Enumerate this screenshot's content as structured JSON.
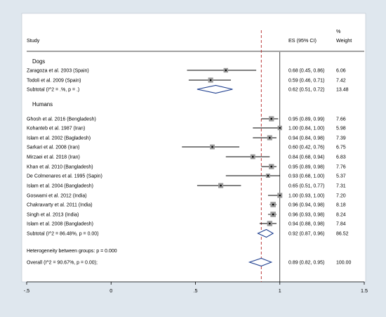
{
  "chart_data": {
    "type": "forest",
    "headers": {
      "study": "Study",
      "es": "ES (95% CI)",
      "weight_pct": "%",
      "weight": "Weight"
    },
    "x_ticks": [
      "-.5",
      "0",
      ".5",
      "1",
      "1.5"
    ],
    "x_tick_values": [
      -0.5,
      0,
      0.5,
      1,
      1.5
    ],
    "xlim": [
      -0.5,
      1.5
    ],
    "overall_line_value": 0.89,
    "colors": {
      "background": "#dfe7ee",
      "panel": "#ffffff",
      "overall_line": "#b22222",
      "diamond": "#1f3f8f",
      "ci_line": "#000000",
      "box": "#9a9a9a"
    },
    "groups": [
      {
        "name": "Dogs",
        "studies": [
          {
            "label": "Zaragoza et al. 2003 (Spain)",
            "es": 0.68,
            "lo": 0.45,
            "hi": 0.86,
            "es_text": "0.68 (0.45, 0.86)",
            "weight": "6.06"
          },
          {
            "label": "Todoli et al. 2009 (Spain)",
            "es": 0.59,
            "lo": 0.46,
            "hi": 0.71,
            "es_text": "0.59 (0.46, 0.71)",
            "weight": "7.42"
          }
        ],
        "subtotal": {
          "label": "Subtotal  (I^2 = .%, p = .)",
          "es": 0.62,
          "lo": 0.51,
          "hi": 0.72,
          "es_text": "0.62 (0.51, 0.72)",
          "weight": "13.48"
        }
      },
      {
        "name": "Humans",
        "studies": [
          {
            "label": "Ghosh et al. 2016 (Bengladesh)",
            "es": 0.95,
            "lo": 0.89,
            "hi": 0.99,
            "es_text": "0.95 (0.89, 0.99)",
            "weight": "7.66"
          },
          {
            "label": "Kohanteb et al. 1987 (Iran)",
            "es": 1.0,
            "lo": 0.84,
            "hi": 1.0,
            "es_text": "1.00 (0.84, 1.00)",
            "weight": "5.98"
          },
          {
            "label": "Islam et al. 2002 (Bagladesh)",
            "es": 0.94,
            "lo": 0.84,
            "hi": 0.98,
            "es_text": "0.94 (0.84, 0.98)",
            "weight": "7.39"
          },
          {
            "label": "Sarkari et al. 2008 (Iran)",
            "es": 0.6,
            "lo": 0.42,
            "hi": 0.76,
            "es_text": "0.60 (0.42, 0.76)",
            "weight": "6.75"
          },
          {
            "label": "Mirzaei et al. 2018 (Iran)",
            "es": 0.84,
            "lo": 0.68,
            "hi": 0.94,
            "es_text": "0.84 (0.68, 0.94)",
            "weight": "6.83"
          },
          {
            "label": "Khan et al. 2010 (Bangladesh)",
            "es": 0.95,
            "lo": 0.89,
            "hi": 0.98,
            "es_text": "0.95 (0.89, 0.98)",
            "weight": "7.76"
          },
          {
            "label": "De Colmenares et al. 1995 (Sapin)",
            "es": 0.93,
            "lo": 0.68,
            "hi": 1.0,
            "es_text": "0.93 (0.68, 1.00)",
            "weight": "5.37"
          },
          {
            "label": "Islam et al. 2004 (Bangladesh)",
            "es": 0.65,
            "lo": 0.51,
            "hi": 0.77,
            "es_text": "0.65 (0.51, 0.77)",
            "weight": "7.31"
          },
          {
            "label": "Goswami et al. 2012 (India)",
            "es": 1.0,
            "lo": 0.93,
            "hi": 1.0,
            "es_text": "1.00 (0.93, 1.00)",
            "weight": "7.20"
          },
          {
            "label": "Chakravarty et al. 2011 (India)",
            "es": 0.96,
            "lo": 0.94,
            "hi": 0.98,
            "es_text": "0.96 (0.94, 0.98)",
            "weight": "8.18"
          },
          {
            "label": "Singh et al. 2013 (India)",
            "es": 0.96,
            "lo": 0.93,
            "hi": 0.98,
            "es_text": "0.96 (0.93, 0.98)",
            "weight": "8.24"
          },
          {
            "label": "Islam et al. 2008 (Bangladesh)",
            "es": 0.94,
            "lo": 0.88,
            "hi": 0.98,
            "es_text": "0.94 (0.88, 0.98)",
            "weight": "7.84"
          }
        ],
        "subtotal": {
          "label": "Subtotal  (I^2 = 86.48%, p = 0.00)",
          "es": 0.92,
          "lo": 0.87,
          "hi": 0.96,
          "es_text": "0.92 (0.87, 0.96)",
          "weight": "86.52"
        }
      }
    ],
    "heterogeneity": "Heterogeneity between groups: p = 0.000",
    "overall": {
      "label": "Overall  (I^2 = 90.67%, p = 0.00);",
      "es": 0.89,
      "lo": 0.82,
      "hi": 0.95,
      "es_text": "0.89 (0.82, 0.95)",
      "weight": "100.00"
    }
  }
}
